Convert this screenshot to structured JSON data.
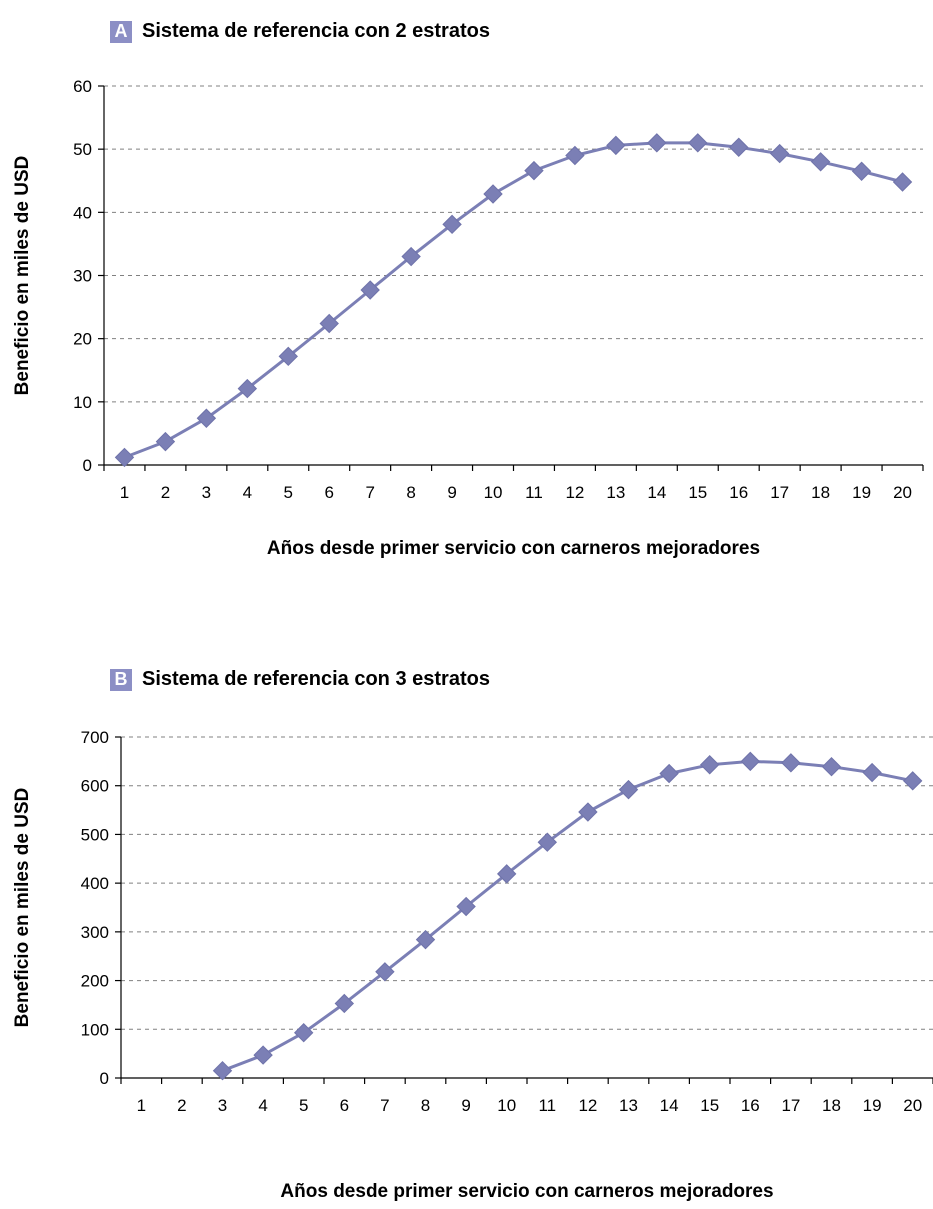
{
  "colors": {
    "series": "#7b7fb5",
    "axis": "#000000",
    "grid": "#808080",
    "badge": "#8c8fc5"
  },
  "chart_data": [
    {
      "type": "line",
      "badge": "A",
      "title": "Sistema de referencia con 2 estratos",
      "xlabel": "Años desde primer servicio con carneros mejoradores",
      "ylabel": "Beneficio en miles de USD",
      "categories": [
        "1",
        "2",
        "3",
        "4",
        "5",
        "6",
        "7",
        "8",
        "9",
        "10",
        "11",
        "12",
        "13",
        "14",
        "15",
        "16",
        "17",
        "18",
        "19",
        "20"
      ],
      "yticks": [
        "0",
        "10",
        "20",
        "30",
        "40",
        "50",
        "60"
      ],
      "ylim": [
        0,
        60
      ],
      "grid": true,
      "marker": "diamond",
      "series": [
        {
          "values": [
            1.2,
            3.7,
            7.4,
            12.1,
            17.2,
            22.4,
            27.7,
            33.0,
            38.1,
            42.9,
            46.6,
            49.0,
            50.6,
            51.0,
            51.0,
            50.3,
            49.3,
            48.0,
            46.5,
            44.8
          ]
        }
      ]
    },
    {
      "type": "line",
      "badge": "B",
      "title": "Sistema de referencia con 3 estratos",
      "xlabel": "Años desde primer servicio con carneros mejoradores",
      "ylabel": "Beneficio en miles de USD",
      "categories": [
        "1",
        "2",
        "3",
        "4",
        "5",
        "6",
        "7",
        "8",
        "9",
        "10",
        "11",
        "12",
        "13",
        "14",
        "15",
        "16",
        "17",
        "18",
        "19",
        "20"
      ],
      "yticks": [
        "0",
        "100",
        "200",
        "300",
        "400",
        "500",
        "600",
        "700"
      ],
      "ylim": [
        0,
        700
      ],
      "grid": true,
      "marker": "diamond",
      "series": [
        {
          "values": [
            null,
            null,
            15,
            47,
            93,
            153,
            218,
            284,
            352,
            419,
            484,
            546,
            592,
            625,
            643,
            650,
            647,
            639,
            627,
            610
          ]
        }
      ]
    }
  ]
}
